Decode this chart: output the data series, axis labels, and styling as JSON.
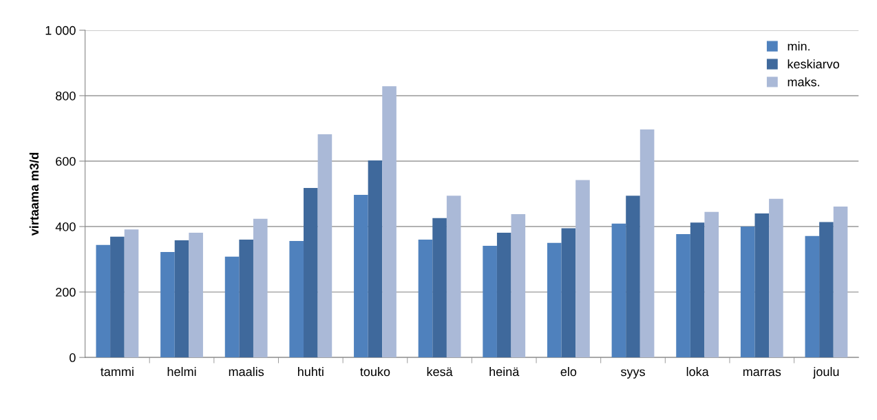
{
  "chart_data": {
    "type": "bar",
    "ylabel": "virtaama m3/d",
    "categories": [
      "tammi",
      "helmi",
      "maalis",
      "huhti",
      "touko",
      "kesä",
      "heinä",
      "elo",
      "syys",
      "loka",
      "marras",
      "joulu"
    ],
    "series": [
      {
        "name": "min.",
        "color": "#4f81bd",
        "values": [
          344,
          322,
          308,
          356,
          497,
          360,
          341,
          350,
          409,
          377,
          400,
          371
        ]
      },
      {
        "name": "keskiarvo",
        "color": "#3f699c",
        "values": [
          369,
          358,
          360,
          518,
          602,
          426,
          381,
          395,
          494,
          412,
          440,
          414
        ]
      },
      {
        "name": "maks.",
        "color": "#aab9d7",
        "values": [
          391,
          381,
          424,
          682,
          829,
          494,
          438,
          542,
          697,
          445,
          485,
          461
        ]
      }
    ],
    "ylim": [
      0,
      1000
    ],
    "yticks": [
      0,
      200,
      400,
      600,
      800,
      {
        "value": 1000,
        "label": "1 000"
      }
    ],
    "grid": "y",
    "legend": "top right"
  }
}
